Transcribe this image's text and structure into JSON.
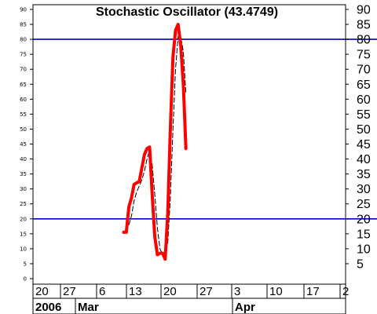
{
  "chart_data": {
    "type": "line",
    "title": "Stochastic Oscillator (43.4749)",
    "ylim": [
      0,
      95
    ],
    "y_ticks_left": [
      0,
      5,
      10,
      15,
      20,
      25,
      30,
      35,
      40,
      45,
      50,
      55,
      60,
      65,
      70,
      75,
      80,
      85,
      90
    ],
    "y_ticks_right": [
      5,
      10,
      15,
      20,
      25,
      30,
      35,
      40,
      45,
      50,
      55,
      60,
      65,
      70,
      75,
      80,
      85,
      90
    ],
    "reference_lines": [
      20,
      80
    ],
    "x_tick_labels": [
      "20",
      "27",
      "6",
      "13",
      "20",
      "27",
      "3",
      "10",
      "17",
      "2"
    ],
    "x_period_labels": [
      "2006",
      "Mar",
      "Apr"
    ],
    "grid": false,
    "colors": {
      "k_line": "#ff0000",
      "d_line": "#000000",
      "reference": "#0000cc"
    },
    "series": [
      {
        "key": "k",
        "style": "thick-solid",
        "points": [
          [
            35,
            15.5
          ],
          [
            36,
            15.5
          ],
          [
            37,
            24
          ],
          [
            38,
            27
          ],
          [
            39,
            31.5
          ],
          [
            40,
            32
          ],
          [
            41,
            32.5
          ],
          [
            42,
            37
          ],
          [
            43,
            41.5
          ],
          [
            44,
            43.5
          ],
          [
            45,
            44
          ],
          [
            46,
            28
          ],
          [
            47,
            14
          ],
          [
            48,
            8
          ],
          [
            49,
            8.5
          ],
          [
            50,
            8.5
          ],
          [
            51,
            6.5
          ],
          [
            52,
            22
          ],
          [
            53,
            50
          ],
          [
            54,
            74
          ],
          [
            55,
            83
          ],
          [
            56,
            85
          ],
          [
            57,
            78
          ],
          [
            58,
            65
          ],
          [
            59,
            43.5
          ]
        ]
      },
      {
        "key": "d",
        "style": "thin-dashed",
        "points": [
          [
            37,
            18
          ],
          [
            38,
            21
          ],
          [
            39,
            26
          ],
          [
            40,
            29
          ],
          [
            41,
            31
          ],
          [
            42,
            33
          ],
          [
            43,
            36
          ],
          [
            44,
            40
          ],
          [
            45,
            43
          ],
          [
            46,
            38
          ],
          [
            47,
            28
          ],
          [
            48,
            17
          ],
          [
            49,
            10
          ],
          [
            50,
            8
          ],
          [
            51,
            8
          ],
          [
            52,
            12
          ],
          [
            53,
            27
          ],
          [
            54,
            50
          ],
          [
            55,
            70
          ],
          [
            56,
            81
          ],
          [
            57,
            81
          ],
          [
            58,
            76
          ],
          [
            59,
            62
          ]
        ]
      }
    ]
  }
}
